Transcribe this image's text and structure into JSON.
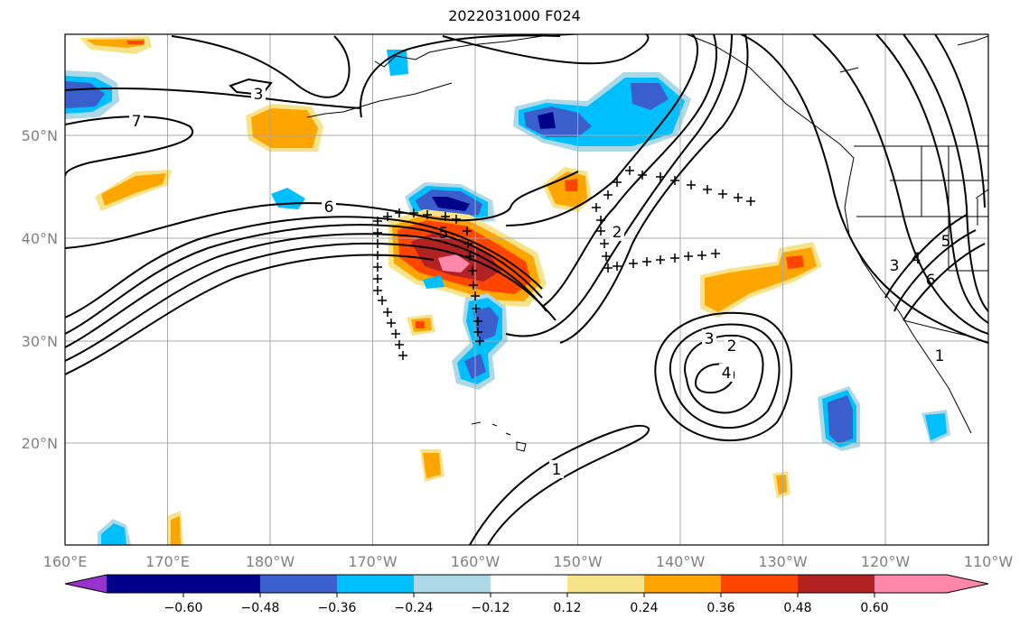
{
  "title": "2022031000 F024",
  "map": {
    "projection": "PlateCarree",
    "lon_range": [
      160,
      250
    ],
    "lat_range": [
      10,
      60
    ],
    "gridlines": true
  },
  "x_ticks": [
    "160°E",
    "170°E",
    "180°W",
    "170°W",
    "160°W",
    "150°W",
    "140°W",
    "130°W",
    "120°W",
    "110°W"
  ],
  "y_ticks": [
    "50°N",
    "40°N",
    "30°N",
    "20°N"
  ],
  "colorbar": {
    "extend": "both",
    "ticks": [
      "−0.60",
      "−0.48",
      "−0.36",
      "−0.24",
      "−0.12",
      "0.12",
      "0.24",
      "0.36",
      "0.48",
      "0.60"
    ],
    "colors": [
      "#9932CC",
      "#00008B",
      "#3A5FCD",
      "#00BFFF",
      "#ADD8E6",
      "#FFFFFF",
      "#F6E38A",
      "#FFA500",
      "#FF4500",
      "#B22222",
      "#FF88AA"
    ]
  },
  "contour_labels": [
    "3",
    "7",
    "6",
    "5",
    "2",
    "3",
    "2",
    "3",
    "4",
    "1",
    "3",
    "4",
    "5",
    "6",
    "1"
  ]
}
